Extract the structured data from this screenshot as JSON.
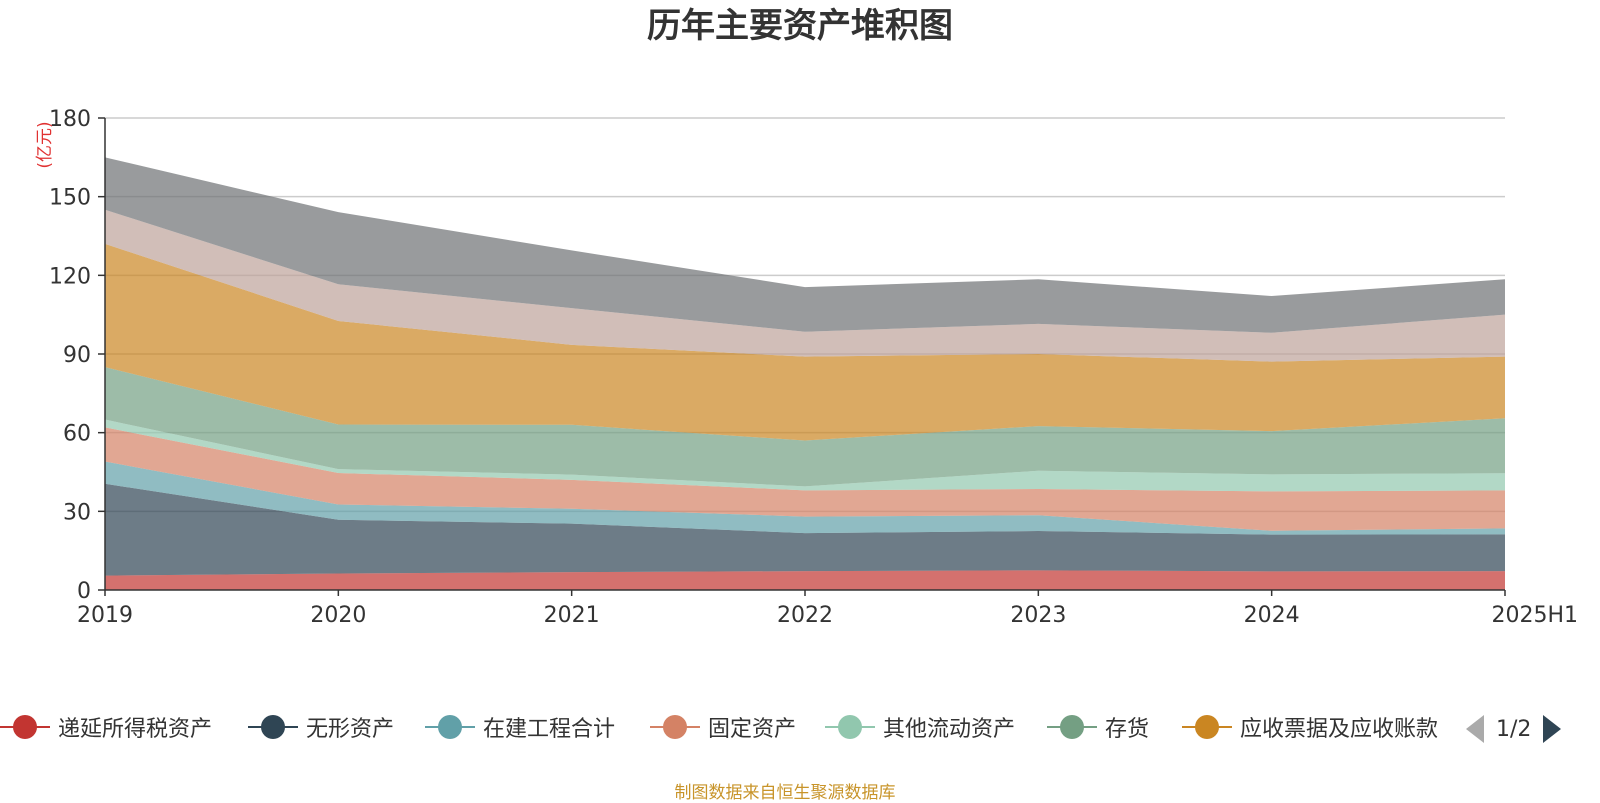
{
  "chart_data": {
    "type": "area",
    "title": "历年主要资产堆积图",
    "ylabel": "(亿元)",
    "xlabel": "",
    "categories": [
      "2019",
      "2020",
      "2021",
      "2022",
      "2023",
      "2024",
      "2025H1"
    ],
    "ylim": [
      0,
      180
    ],
    "yticks": [
      0,
      30,
      60,
      90,
      120,
      150,
      180
    ],
    "stacked": true,
    "grid": true,
    "legend_position": "bottom",
    "series": [
      {
        "name": "递延所得税资产",
        "color": "#c23531",
        "values": [
          5.5,
          6.3,
          6.8,
          7.2,
          7.5,
          7.1,
          7.2
        ]
      },
      {
        "name": "无形资产",
        "color": "#2f4554",
        "values": [
          35.0,
          20.5,
          18.5,
          14.5,
          15.0,
          14.0,
          14.0
        ]
      },
      {
        "name": "在建工程合计",
        "color": "#61a0a8",
        "values": [
          8.5,
          5.8,
          5.7,
          6.3,
          6.0,
          1.5,
          2.3
        ]
      },
      {
        "name": "固定资产",
        "color": "#d48265",
        "values": [
          13.0,
          12.0,
          11.0,
          10.0,
          10.0,
          15.0,
          14.5
        ]
      },
      {
        "name": "其他流动资产",
        "color": "#91c7ae",
        "values": [
          3.0,
          1.5,
          2.0,
          1.5,
          7.0,
          6.5,
          6.5
        ]
      },
      {
        "name": "存货",
        "color": "#749f83",
        "values": [
          20.0,
          17.0,
          19.0,
          17.5,
          17.0,
          16.5,
          21.0
        ]
      },
      {
        "name": "应收票据及应收账款",
        "color": "#ca8622",
        "values": [
          47.0,
          39.5,
          30.5,
          32.0,
          27.5,
          26.5,
          23.5
        ]
      },
      {
        "name": "",
        "color": "#bda29a",
        "values": [
          13.0,
          14.0,
          14.0,
          9.5,
          11.5,
          11.0,
          16.0
        ]
      },
      {
        "name": "",
        "color": "#6e7074",
        "values": [
          20.0,
          27.5,
          22.0,
          17.0,
          17.0,
          14.0,
          13.5
        ]
      }
    ]
  },
  "legend": {
    "items": [
      {
        "label": "递延所得税资产",
        "color": "#c23531"
      },
      {
        "label": "无形资产",
        "color": "#2f4554"
      },
      {
        "label": "在建工程合计",
        "color": "#61a0a8"
      },
      {
        "label": "固定资产",
        "color": "#d48265"
      },
      {
        "label": "其他流动资产",
        "color": "#91c7ae"
      },
      {
        "label": "存货",
        "color": "#749f83"
      },
      {
        "label": "应收票据及应收账款",
        "color": "#ca8622"
      }
    ],
    "page_label": "1/2"
  },
  "source_note": "制图数据来自恒生聚源数据库"
}
